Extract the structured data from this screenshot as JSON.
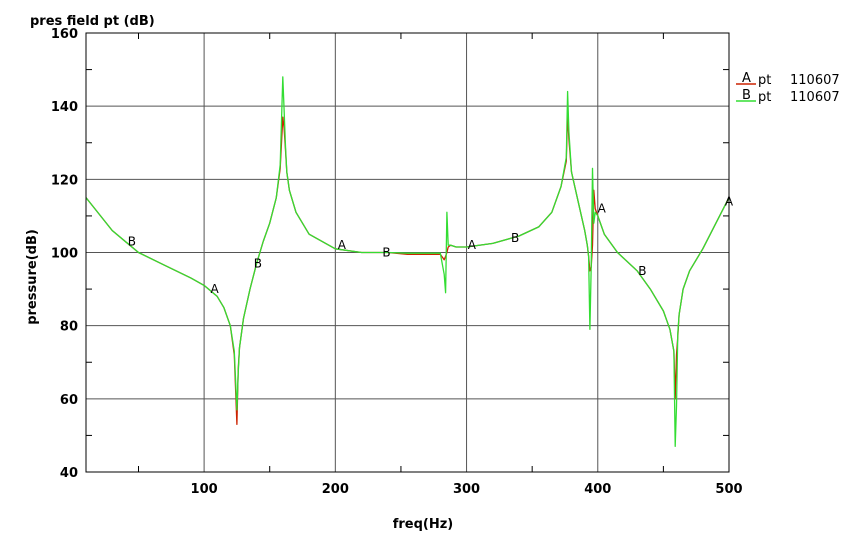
{
  "chart_data": {
    "type": "line",
    "title": "pres field pt (dB)",
    "xlabel": "freq(Hz)",
    "ylabel": "pressure(dB)",
    "xlim": [
      10,
      500
    ],
    "ylim": [
      40,
      160
    ],
    "xticks": [
      100,
      200,
      300,
      400,
      500
    ],
    "yticks": [
      40,
      60,
      80,
      100,
      120,
      140,
      160
    ],
    "grid": true,
    "legend_position": "right",
    "legend": [
      {
        "marker": "A",
        "name": "pt",
        "id": "110607",
        "color": "#cc2200"
      },
      {
        "marker": "B",
        "name": "pt",
        "id": "110607",
        "color": "#33dd33"
      }
    ],
    "series": [
      {
        "marker": "A",
        "color": "#cc2200",
        "x": [
          10,
          30,
          50,
          70,
          90,
          100,
          110,
          115,
          120,
          123,
          125,
          126,
          127,
          130,
          135,
          140,
          145,
          150,
          155,
          158,
          160,
          161,
          162,
          163,
          165,
          170,
          180,
          200,
          220,
          240,
          255,
          270,
          280,
          283,
          284,
          285,
          286,
          288,
          292,
          300,
          320,
          340,
          355,
          365,
          372,
          376,
          377,
          378,
          380,
          385,
          390,
          392,
          393,
          394,
          395,
          396,
          397,
          398,
          400,
          405,
          415,
          430,
          440,
          450,
          455,
          458,
          459,
          460,
          461,
          462,
          465,
          470,
          480,
          490,
          500
        ],
        "y": [
          115,
          106,
          100,
          96.5,
          93,
          91,
          88,
          85,
          80,
          72,
          53,
          68,
          74,
          82,
          90,
          97,
          103,
          108,
          115,
          123,
          137,
          134,
          128,
          122,
          117,
          111,
          105,
          101,
          100,
          100,
          99.5,
          99.5,
          99.5,
          98,
          99,
          100,
          101.5,
          102,
          101.5,
          101.5,
          102.5,
          104.5,
          107,
          111,
          118,
          125,
          138,
          131,
          122,
          114,
          106,
          102,
          99,
          95,
          96,
          102,
          117,
          112,
          110,
          105,
          100,
          95,
          90,
          84,
          79,
          73,
          60,
          72,
          77,
          83,
          90,
          95,
          101,
          108,
          115
        ]
      },
      {
        "marker": "B",
        "color": "#33dd33",
        "x": [
          10,
          30,
          50,
          70,
          90,
          100,
          110,
          115,
          120,
          123,
          125,
          126,
          127,
          130,
          135,
          140,
          145,
          150,
          155,
          158,
          160,
          161,
          162,
          163,
          165,
          170,
          180,
          200,
          220,
          240,
          255,
          270,
          280,
          283,
          284,
          285,
          286,
          288,
          292,
          300,
          320,
          340,
          355,
          365,
          372,
          376,
          377,
          378,
          380,
          385,
          390,
          392,
          393,
          394,
          395,
          396,
          397,
          398,
          400,
          405,
          415,
          430,
          440,
          450,
          455,
          458,
          459,
          460,
          461,
          462,
          465,
          470,
          480,
          490,
          500
        ],
        "y": [
          115,
          106,
          100,
          96.5,
          93,
          91,
          88,
          85,
          80,
          73,
          57,
          67,
          74,
          82,
          90,
          97,
          103,
          108,
          115,
          124,
          148,
          139,
          129,
          122,
          117,
          111,
          105,
          101,
          100,
          100,
          99.8,
          99.8,
          99.8,
          94,
          89,
          111,
          102,
          102,
          101.5,
          101.5,
          102.5,
          104.5,
          107,
          111,
          118,
          126,
          144,
          133,
          122,
          114,
          106,
          102,
          99,
          79,
          96,
          123,
          108,
          111,
          110,
          105,
          100,
          95,
          90,
          84,
          79,
          73,
          47,
          58,
          78,
          83,
          90,
          95,
          101,
          108,
          115
        ]
      }
    ],
    "annotations": [
      {
        "text": "B",
        "x": 45,
        "y": 103
      },
      {
        "text": "A",
        "x": 108,
        "y": 90
      },
      {
        "text": "B",
        "x": 141,
        "y": 97
      },
      {
        "text": "A",
        "x": 205,
        "y": 102
      },
      {
        "text": "B",
        "x": 239,
        "y": 100
      },
      {
        "text": "A",
        "x": 304,
        "y": 102
      },
      {
        "text": "B",
        "x": 337,
        "y": 104
      },
      {
        "text": "A",
        "x": 403,
        "y": 112
      },
      {
        "text": "B",
        "x": 434,
        "y": 95
      },
      {
        "text": "A",
        "x": 500,
        "y": 114
      }
    ]
  }
}
